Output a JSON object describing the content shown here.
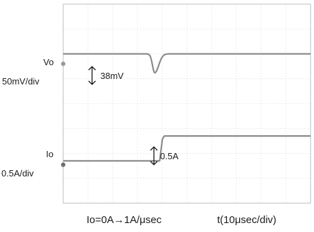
{
  "chart_data": {
    "type": "line",
    "title": "",
    "x_divisions": 10,
    "y_divisions": 8,
    "grid": true,
    "x_unit_label": "t(10μsec/div)",
    "test_condition": "Io=0A→1A/μsec",
    "series": [
      {
        "channel": "Vo",
        "scale": "50mV/div",
        "baseline_div": 6.0,
        "dip_mV": 38,
        "dip_center_div": 3.7,
        "annotation": "38mV",
        "color": "#8a8a8a"
      },
      {
        "channel": "Io",
        "scale": "0.5A/div",
        "low_div": 1.7,
        "step_A": 0.5,
        "step_time_div": 3.95,
        "annotation": "0.5A",
        "color": "#8a8a8a"
      }
    ]
  }
}
